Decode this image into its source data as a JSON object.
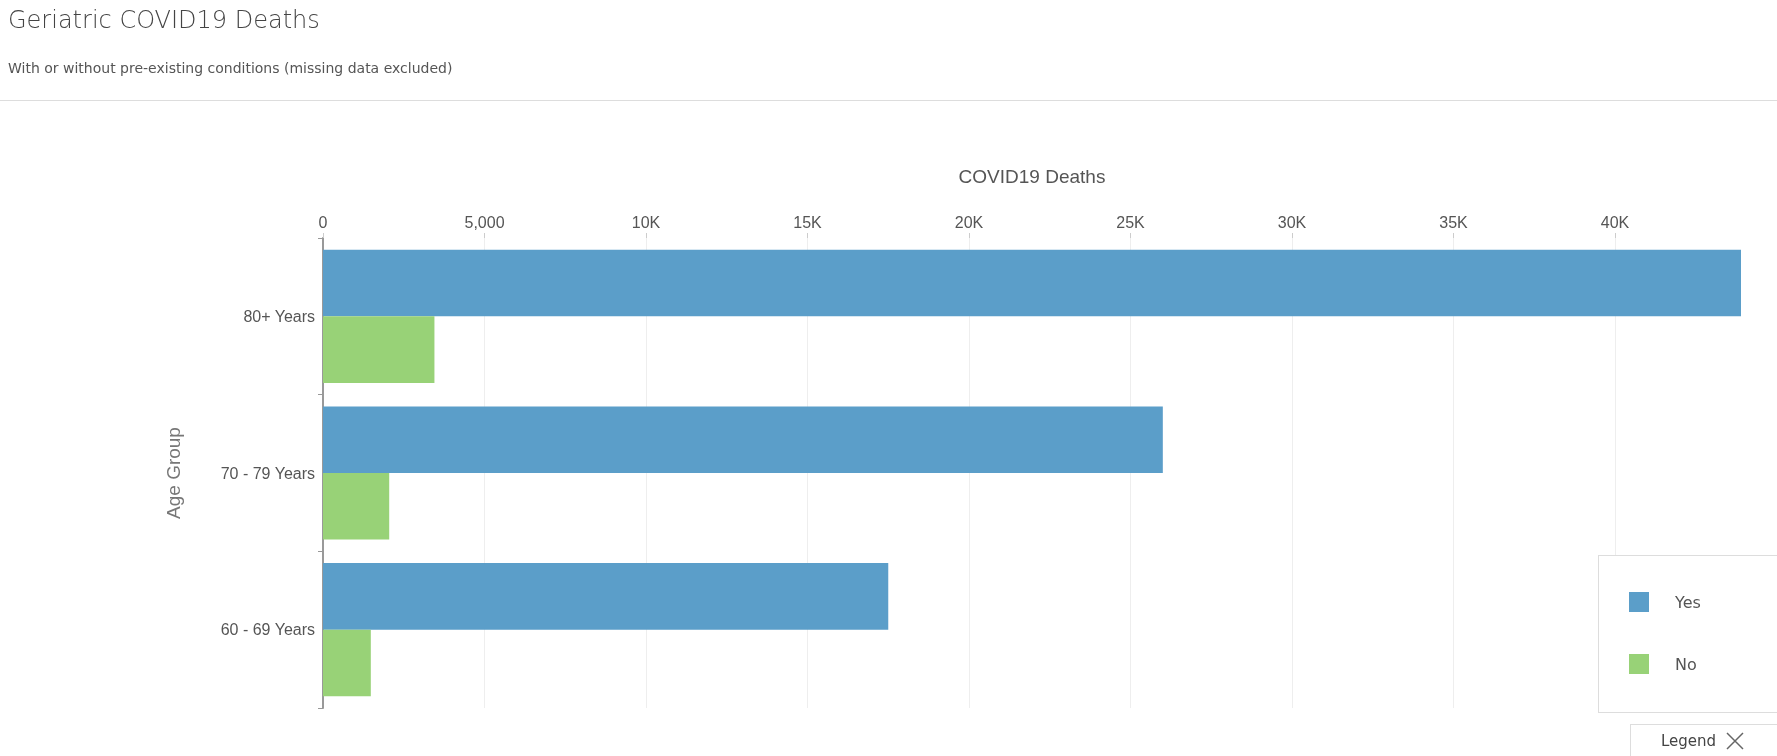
{
  "chart_data": {
    "type": "bar",
    "orientation": "horizontal",
    "title": "Geriatric COVID19 Deaths",
    "subtitle": "With or without pre-existing conditions (missing data excluded)",
    "xlabel": "COVID19 Deaths",
    "ylabel": "Age Group",
    "categories": [
      "80+ Years",
      "70 - 79 Years",
      "60 - 69 Years"
    ],
    "series": [
      {
        "name": "Yes",
        "color": "#5b9ec9",
        "values": [
          43900,
          26000,
          17500
        ]
      },
      {
        "name": "No",
        "color": "#98d277",
        "values": [
          3450,
          2050,
          1480
        ]
      }
    ],
    "xlim": [
      0,
      43900
    ],
    "xticks": [
      0,
      {
        "value": 5000,
        "label": "5,000"
      },
      {
        "value": 10000,
        "label": "10K"
      },
      {
        "value": 15000,
        "label": "15K"
      },
      {
        "value": 20000,
        "label": "20K"
      },
      {
        "value": 25000,
        "label": "25K"
      },
      {
        "value": 30000,
        "label": "30K"
      },
      {
        "value": 35000,
        "label": "35K"
      },
      {
        "value": 40000,
        "label": "40K"
      }
    ],
    "grid": "x",
    "legend": "bottom right",
    "annotations": [
      "Legend"
    ]
  }
}
